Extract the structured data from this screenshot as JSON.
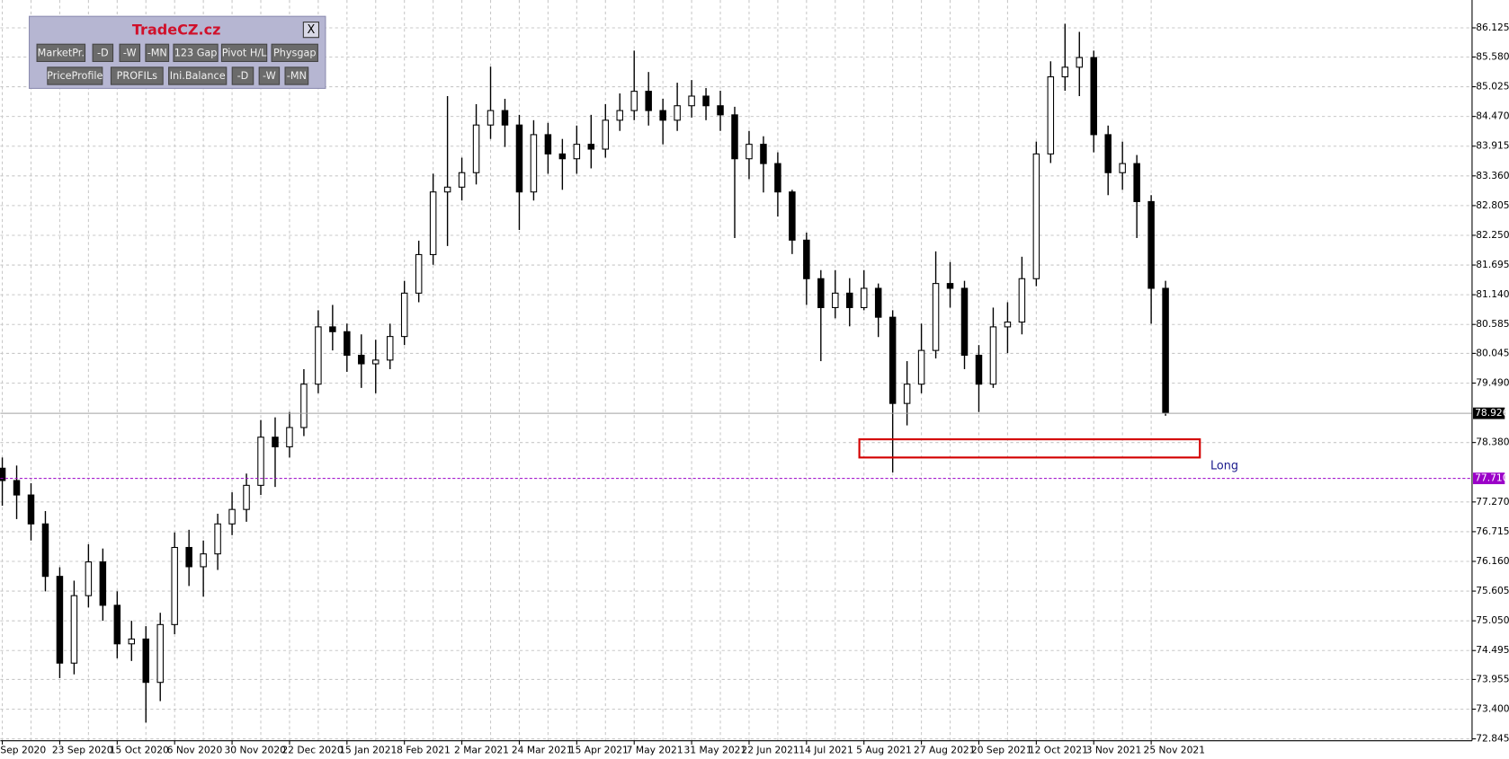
{
  "chart_data": {
    "type": "candlestick",
    "color": "#000000",
    "up_fill": "#ffffff",
    "grid": true,
    "ylim": [
      72.81,
      86.645
    ],
    "yticks": [
      86.125,
      {
        "value": 85.58,
        "label": "85.580"
      },
      85.025,
      {
        "value": 84.47,
        "label": "84.470"
      },
      83.915,
      {
        "value": 83.36,
        "label": "83.360"
      },
      82.805,
      {
        "value": 82.25,
        "label": "82.250"
      },
      81.695,
      {
        "value": 81.14,
        "label": "81.140"
      },
      80.585,
      80.045,
      {
        "value": 79.49,
        "label": "79.490"
      },
      {
        "value": 78.38,
        "label": "78.380"
      },
      {
        "value": 77.27,
        "label": "77.270"
      },
      76.715,
      {
        "value": 76.16,
        "label": "76.160"
      },
      75.605,
      {
        "value": 75.05,
        "label": "75.050"
      },
      74.495,
      73.955,
      {
        "value": 73.4,
        "label": "73.400"
      },
      72.845
    ],
    "categories": [
      "Sep 2020",
      null,
      null,
      null,
      "23 Sep 2020",
      null,
      null,
      null,
      "15 Oct 2020",
      null,
      null,
      null,
      "6 Nov 2020",
      null,
      null,
      null,
      "30 Nov 2020",
      null,
      null,
      null,
      "22 Dec 2020",
      null,
      null,
      null,
      "15 Jan 2021",
      null,
      null,
      null,
      "8 Feb 2021",
      null,
      null,
      null,
      "2 Mar 2021",
      null,
      null,
      null,
      "24 Mar 2021",
      null,
      null,
      null,
      "15 Apr 2021",
      null,
      null,
      null,
      "7 May 2021",
      null,
      null,
      null,
      "31 May 2021",
      null,
      null,
      null,
      "22 Jun 2021",
      null,
      null,
      null,
      "14 Jul 2021",
      null,
      null,
      null,
      "5 Aug 2021",
      null,
      null,
      null,
      "27 Aug 2021",
      null,
      null,
      null,
      "20 Sep 2021",
      null,
      null,
      null,
      "12 Oct 2021",
      null,
      null,
      null,
      "3 Nov 2021",
      null,
      null,
      null,
      "25 Nov 2021",
      null
    ],
    "open": [
      77.9,
      77.67,
      77.4,
      76.86,
      75.88,
      74.26,
      75.52,
      76.15,
      75.34,
      74.62,
      74.71,
      73.9,
      74.98,
      76.42,
      76.06,
      76.3,
      76.86,
      77.13,
      77.58,
      78.48,
      78.3,
      78.66,
      79.47,
      80.54,
      80.45,
      80.01,
      79.85,
      79.92,
      80.36,
      81.17,
      81.89,
      83.06,
      83.15,
      83.42,
      84.31,
      84.58,
      84.31,
      83.06,
      84.13,
      83.77,
      83.68,
      83.95,
      83.86,
      84.4,
      84.58,
      84.94,
      84.58,
      84.4,
      84.67,
      84.85,
      84.67,
      84.5,
      83.68,
      83.95,
      83.59,
      83.06,
      82.16,
      81.44,
      80.9,
      81.17,
      80.9,
      81.26,
      80.72,
      79.11,
      79.47,
      80.1,
      81.35,
      81.26,
      80.01,
      79.47,
      80.54,
      80.63,
      81.44,
      83.77,
      85.21,
      85.39,
      85.57,
      84.13,
      83.42,
      83.59,
      82.88,
      81.26
    ],
    "high": [
      78.1,
      77.95,
      77.62,
      77.1,
      76.05,
      75.8,
      76.48,
      76.4,
      75.6,
      75.05,
      74.95,
      75.2,
      76.7,
      76.75,
      76.55,
      77.05,
      77.45,
      77.8,
      78.8,
      78.85,
      78.95,
      79.75,
      80.85,
      80.95,
      80.6,
      80.4,
      80.3,
      80.6,
      81.4,
      82.15,
      83.4,
      84.85,
      83.7,
      84.7,
      85.4,
      84.8,
      84.5,
      84.4,
      84.35,
      84.05,
      84.3,
      84.5,
      84.7,
      84.9,
      85.7,
      85.3,
      84.8,
      85.1,
      85.15,
      85.0,
      84.95,
      84.65,
      84.2,
      84.1,
      83.8,
      83.1,
      82.3,
      81.6,
      81.6,
      81.45,
      81.6,
      81.35,
      80.85,
      79.9,
      80.6,
      81.95,
      81.75,
      81.4,
      80.2,
      80.9,
      81.0,
      81.85,
      84.0,
      85.5,
      86.2,
      86.05,
      85.7,
      84.3,
      84.0,
      83.75,
      83.0,
      81.4
    ],
    "low": [
      77.2,
      76.95,
      76.55,
      75.6,
      73.98,
      74.05,
      75.3,
      75.05,
      74.35,
      74.3,
      73.15,
      73.55,
      74.8,
      75.7,
      75.5,
      76.0,
      76.65,
      76.9,
      77.4,
      77.55,
      78.1,
      78.5,
      79.3,
      80.1,
      79.7,
      79.4,
      79.3,
      79.75,
      80.2,
      81.0,
      81.7,
      82.05,
      82.9,
      83.2,
      84.05,
      83.9,
      82.35,
      82.9,
      83.4,
      83.1,
      83.4,
      83.5,
      83.7,
      84.2,
      84.4,
      84.3,
      83.95,
      84.2,
      84.45,
      84.4,
      84.2,
      82.2,
      83.3,
      83.05,
      82.6,
      81.9,
      80.95,
      79.9,
      80.7,
      80.55,
      80.85,
      80.35,
      77.82,
      78.7,
      79.3,
      79.95,
      80.9,
      79.75,
      78.95,
      79.4,
      80.05,
      80.4,
      81.3,
      83.6,
      84.95,
      84.85,
      83.8,
      83.0,
      83.1,
      82.2,
      80.6,
      78.88
    ],
    "close": [
      77.67,
      77.4,
      76.86,
      75.88,
      74.26,
      75.52,
      76.15,
      75.34,
      74.62,
      74.71,
      73.9,
      74.98,
      76.42,
      76.06,
      76.3,
      76.86,
      77.13,
      77.58,
      78.48,
      78.3,
      78.66,
      79.47,
      80.54,
      80.45,
      80.01,
      79.85,
      79.92,
      80.36,
      81.17,
      81.89,
      83.06,
      83.15,
      83.42,
      84.31,
      84.58,
      84.31,
      83.06,
      84.13,
      83.77,
      83.68,
      83.95,
      83.86,
      84.4,
      84.58,
      84.94,
      84.58,
      84.4,
      84.67,
      84.85,
      84.67,
      84.5,
      83.68,
      83.95,
      83.59,
      83.06,
      82.16,
      81.44,
      80.9,
      81.17,
      80.9,
      81.26,
      80.72,
      79.11,
      79.47,
      80.1,
      81.35,
      81.26,
      80.01,
      79.47,
      80.54,
      80.63,
      81.44,
      83.77,
      85.21,
      85.39,
      85.57,
      84.13,
      83.42,
      83.59,
      82.88,
      81.26,
      78.93
    ],
    "current_price": 78.926,
    "level": {
      "value": 77.71,
      "label": "77.710",
      "color": "#9b00c8"
    },
    "zone": {
      "label": "Long",
      "high": 78.44,
      "low": 78.1,
      "color": "#d40000"
    }
  },
  "panel": {
    "title": "TradeCZ.cz",
    "close": "X",
    "row1": [
      "MarketPr.",
      "-D",
      "-W",
      "-MN",
      "123 Gap",
      "Pivot H/L",
      "Physgap"
    ],
    "row2": [
      "PriceProfile",
      "PROFILs",
      "Ini.Balance",
      "-D",
      "-W",
      "-MN"
    ]
  }
}
